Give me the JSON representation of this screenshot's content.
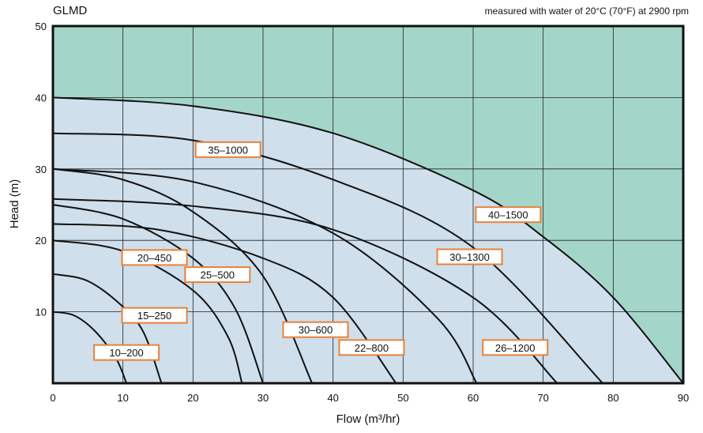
{
  "chart_data": {
    "type": "line",
    "title": "GLMD",
    "subtitle": "measured with water of 20°C (70°F) at 2900 rpm",
    "xlabel": "Flow (m³/hr)",
    "ylabel": "Head (m)",
    "xlim": [
      0,
      90
    ],
    "ylim": [
      0,
      50
    ],
    "xticks": [
      0,
      10,
      20,
      30,
      40,
      50,
      60,
      70,
      80,
      90
    ],
    "yticks": [
      10,
      20,
      30,
      40,
      50
    ],
    "grid": true,
    "colors": {
      "region_above": "#a3d6c8",
      "region_below": "#cfdfec",
      "curve": "#111111",
      "label_border": "#e8823a"
    },
    "series": [
      {
        "name": "10–200",
        "x": [
          0,
          3,
          6,
          9,
          10.5
        ],
        "y": [
          10,
          9.5,
          7.3,
          3.5,
          0
        ]
      },
      {
        "name": "15–250",
        "x": [
          0,
          5,
          10,
          13,
          15.5
        ],
        "y": [
          15.3,
          14.3,
          10.7,
          7,
          0
        ]
      },
      {
        "name": "20–450",
        "x": [
          0,
          10,
          20,
          25,
          27
        ],
        "y": [
          20,
          18.5,
          13,
          6.5,
          0
        ]
      },
      {
        "name": "25–500",
        "x": [
          0,
          10,
          20,
          26,
          30
        ],
        "y": [
          25,
          23,
          17.5,
          10.5,
          0
        ]
      },
      {
        "name": "30–600",
        "x": [
          0,
          10,
          20,
          30,
          37
        ],
        "y": [
          30,
          28.5,
          24,
          15,
          0
        ]
      },
      {
        "name": "22–800",
        "x": [
          0,
          15,
          30,
          40,
          49
        ],
        "y": [
          22.3,
          21.5,
          17.5,
          12,
          0
        ]
      },
      {
        "name": "26–1200",
        "x": [
          0,
          20,
          40,
          60,
          72
        ],
        "y": [
          25.8,
          24.8,
          21.5,
          12,
          0
        ]
      },
      {
        "name": "30–1300",
        "x": [
          0,
          20,
          40,
          55,
          60.5
        ],
        "y": [
          30,
          28.2,
          21,
          9,
          0
        ]
      },
      {
        "name": "35–1000",
        "x": [
          0,
          20,
          40,
          60,
          78.5
        ],
        "y": [
          35,
          34,
          28.5,
          19,
          0
        ]
      },
      {
        "name": "40–1500",
        "x": [
          0,
          20,
          40,
          60,
          70,
          80,
          90
        ],
        "y": [
          40,
          38.8,
          35,
          27,
          20.5,
          12,
          0
        ]
      }
    ]
  },
  "labels": [
    {
      "series": "10–200",
      "x": 10.5,
      "y": 4.3
    },
    {
      "series": "15–250",
      "x": 14.5,
      "y": 9.5
    },
    {
      "series": "20–450",
      "x": 14.5,
      "y": 17.6
    },
    {
      "series": "25–500",
      "x": 23.5,
      "y": 15.2
    },
    {
      "series": "30–600",
      "x": 37.5,
      "y": 7.5
    },
    {
      "series": "22–800",
      "x": 45.5,
      "y": 5.0
    },
    {
      "series": "26–1200",
      "x": 66.0,
      "y": 5.0
    },
    {
      "series": "30–1300",
      "x": 59.5,
      "y": 17.7
    },
    {
      "series": "35–1000",
      "x": 25.0,
      "y": 32.7
    },
    {
      "series": "40–1500",
      "x": 65.0,
      "y": 23.6
    }
  ]
}
